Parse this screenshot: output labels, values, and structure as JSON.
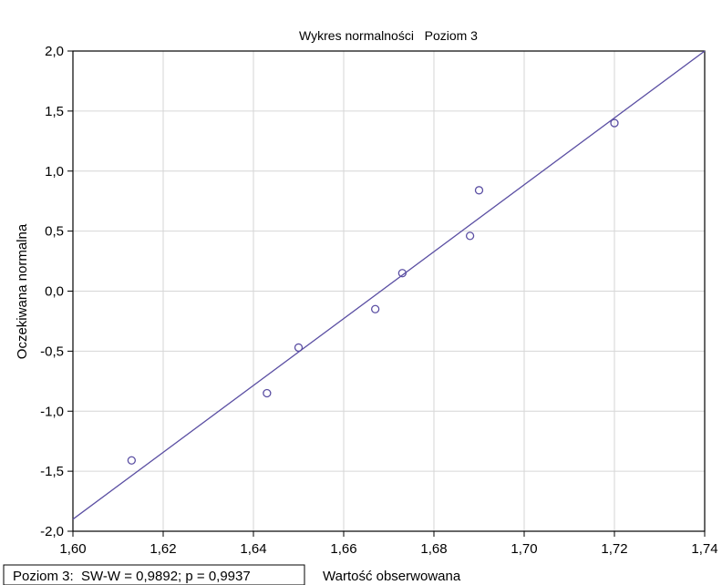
{
  "chart_data": {
    "type": "scatter",
    "title": "Wykres normalności   Poziom 3",
    "xlabel": "Wartość obserwowana",
    "ylabel": "Oczekiwana normalna",
    "xlim": [
      1.6,
      1.74
    ],
    "ylim": [
      -2.0,
      2.0
    ],
    "x_ticks": [
      1.6,
      1.62,
      1.64,
      1.66,
      1.68,
      1.7,
      1.72,
      1.74
    ],
    "x_tick_labels": [
      "1,60",
      "1,62",
      "1,64",
      "1,66",
      "1,68",
      "1,70",
      "1,72",
      "1,74"
    ],
    "y_ticks": [
      2.0,
      1.5,
      1.0,
      0.5,
      0.0,
      -0.5,
      -1.0,
      -1.5,
      -2.0
    ],
    "y_tick_labels": [
      "2,0",
      "1,5",
      "1,0",
      "0,5",
      "0,0",
      "-0,5",
      "-1,0",
      "-1,5",
      "-2,0"
    ],
    "grid": true,
    "points": [
      {
        "x": 1.613,
        "y": -1.41
      },
      {
        "x": 1.643,
        "y": -0.85
      },
      {
        "x": 1.65,
        "y": -0.47
      },
      {
        "x": 1.667,
        "y": -0.15
      },
      {
        "x": 1.673,
        "y": 0.15
      },
      {
        "x": 1.688,
        "y": 0.46
      },
      {
        "x": 1.69,
        "y": 0.84
      },
      {
        "x": 1.72,
        "y": 1.4
      }
    ],
    "reference_line": {
      "x": [
        1.6,
        1.74
      ],
      "y": [
        -1.9,
        2.0
      ]
    },
    "annotation": "Poziom 3:  SW-W = 0,9892; p = 0,9937",
    "colors": {
      "marker": "#5b4fa3",
      "line": "#5b4fa3",
      "grid": "#d6d6d6",
      "axis": "#000000"
    }
  }
}
